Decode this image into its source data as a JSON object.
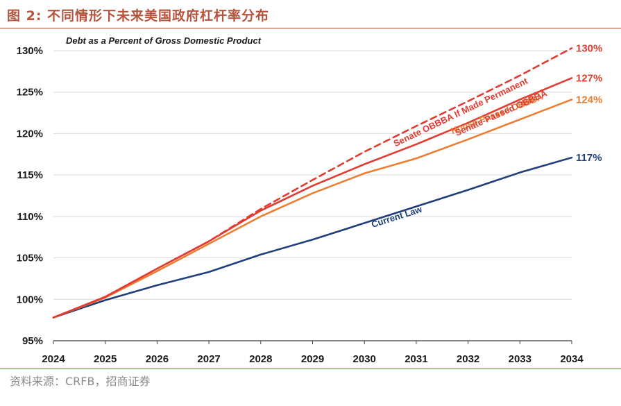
{
  "figure": {
    "title": "图 2:  不同情形下未来美国政府杠杆率分布",
    "source": "资料来源：CRFB，招商证券"
  },
  "colors": {
    "header": "#b5533c",
    "grid": "#d9d9d9",
    "axis": "#404040"
  },
  "chart_data": {
    "type": "line",
    "title": "Debt as a Percent of Gross Domestic Product",
    "xlabel": "",
    "ylabel": "",
    "x": [
      2024,
      2025,
      2026,
      2027,
      2028,
      2029,
      2030,
      2031,
      2032,
      2033,
      2034
    ],
    "xlim": [
      2024,
      2034
    ],
    "ylim": [
      95,
      130
    ],
    "yticks": [
      95,
      100,
      105,
      110,
      115,
      120,
      125,
      130
    ],
    "ytick_labels": [
      "95%",
      "100%",
      "105%",
      "110%",
      "115%",
      "120%",
      "125%",
      "130%"
    ],
    "xtick_labels": [
      "2024",
      "2025",
      "2026",
      "2027",
      "2028",
      "2029",
      "2030",
      "2031",
      "2032",
      "2033",
      "2034"
    ],
    "grid": true,
    "series": [
      {
        "name": "Current Law",
        "color": "#1f3f7a",
        "dashed": false,
        "values": [
          97.8,
          99.9,
          101.7,
          103.3,
          105.4,
          107.2,
          109.2,
          111.2,
          113.2,
          115.3,
          117.1
        ],
        "end_label": "117%",
        "label_color": "#1f3f7a"
      },
      {
        "name": "House-Passed OBBBA",
        "color": "#ed7d31",
        "dashed": false,
        "values": [
          97.8,
          100.2,
          103.4,
          106.7,
          110.0,
          112.8,
          115.2,
          117.0,
          119.3,
          121.7,
          124.1
        ],
        "end_label": "124%",
        "label_color": "#ed7d31"
      },
      {
        "name": "Senate-Passed OBBBA",
        "color": "#e03c31",
        "dashed": false,
        "values": [
          97.8,
          100.3,
          103.7,
          107.0,
          110.7,
          113.7,
          116.3,
          118.7,
          121.3,
          124.1,
          126.7
        ],
        "end_label": "127%",
        "label_color": "#e03c31"
      },
      {
        "name": "Senate OBBBA If Made Permanent",
        "color": "#e03c31",
        "dashed": true,
        "values": [
          97.8,
          100.3,
          103.7,
          107.0,
          110.9,
          114.4,
          117.8,
          120.9,
          123.9,
          127.0,
          130.3
        ],
        "end_label": "130%",
        "label_color": "#e03c31"
      }
    ]
  }
}
